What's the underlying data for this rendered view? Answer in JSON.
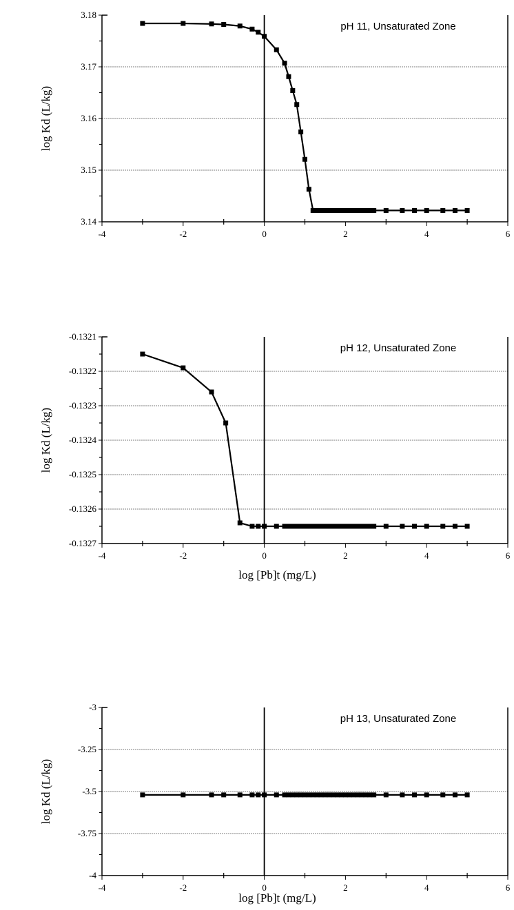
{
  "chart_data": [
    {
      "type": "line",
      "annotation": "pH 11, Unsaturated Zone",
      "ylabel": "log Kd (L/kg)",
      "xlabel": "",
      "xlim": [
        -4,
        6
      ],
      "ylim": [
        3.14,
        3.18
      ],
      "xticks": [
        "-4",
        "-2",
        "0",
        "2",
        "4",
        "6"
      ],
      "yticks": [
        "3.14",
        "3.15",
        "3.16",
        "3.17",
        "3.18"
      ],
      "ytick_values": [
        3.14,
        3.15,
        3.16,
        3.17,
        3.18
      ],
      "grid": "horizontal",
      "series": [
        {
          "x": [
            -3,
            -2,
            -1.3,
            -1,
            -0.6,
            -0.3,
            -0.15,
            0,
            0.3,
            0.5,
            0.6,
            0.7,
            0.8,
            0.9,
            1.0,
            1.1,
            1.2,
            1.3,
            1.4,
            1.5,
            1.6,
            1.7,
            1.8,
            1.9,
            2.0,
            2.1,
            2.2,
            2.3,
            2.4,
            2.5,
            2.6,
            2.7,
            3.0,
            3.4,
            3.7,
            4.0,
            4.4,
            4.7,
            5.0
          ],
          "values": [
            3.1784,
            3.1784,
            3.1783,
            3.1782,
            3.1779,
            3.1773,
            3.1767,
            3.1759,
            3.1733,
            3.1707,
            3.1681,
            3.1654,
            3.1627,
            3.1574,
            3.1521,
            3.1463,
            3.1422,
            3.1422,
            3.1422,
            3.1422,
            3.1422,
            3.1422,
            3.1422,
            3.1422,
            3.1422,
            3.1422,
            3.1422,
            3.1422,
            3.1422,
            3.1422,
            3.1422,
            3.1422,
            3.1422,
            3.1422,
            3.1422,
            3.1422,
            3.1422,
            3.1422,
            3.1422
          ]
        }
      ]
    },
    {
      "type": "line",
      "annotation": "pH 12, Unsaturated Zone",
      "ylabel": "log Kd (L/kg)",
      "xlabel": "log [Pb]t (mg/L)",
      "xlim": [
        -4,
        6
      ],
      "ylim": [
        -0.1327,
        -0.1321
      ],
      "xticks": [
        "-4",
        "-2",
        "0",
        "2",
        "4",
        "6"
      ],
      "yticks": [
        "-0.1327",
        "-0.1326",
        "-0.1325",
        "-0.1324",
        "-0.1323",
        "-0.1322",
        "-0.1321"
      ],
      "ytick_values": [
        -0.1327,
        -0.1326,
        -0.1325,
        -0.1324,
        -0.1323,
        -0.1322,
        -0.1321
      ],
      "grid": "horizontal",
      "series": [
        {
          "x": [
            -3,
            -2,
            -1.3,
            -0.95,
            -0.6,
            -0.3,
            -0.15,
            0,
            0.3,
            0.5,
            0.6,
            0.7,
            0.8,
            0.9,
            1.0,
            1.1,
            1.2,
            1.3,
            1.4,
            1.5,
            1.6,
            1.7,
            1.8,
            1.9,
            2.0,
            2.1,
            2.2,
            2.3,
            2.4,
            2.5,
            2.6,
            2.7,
            3.0,
            3.4,
            3.7,
            4.0,
            4.4,
            4.7,
            5.0
          ],
          "values": [
            -0.13215,
            -0.13219,
            -0.13226,
            -0.13235,
            -0.13264,
            -0.13265,
            -0.13265,
            -0.13265,
            -0.13265,
            -0.13265,
            -0.13265,
            -0.13265,
            -0.13265,
            -0.13265,
            -0.13265,
            -0.13265,
            -0.13265,
            -0.13265,
            -0.13265,
            -0.13265,
            -0.13265,
            -0.13265,
            -0.13265,
            -0.13265,
            -0.13265,
            -0.13265,
            -0.13265,
            -0.13265,
            -0.13265,
            -0.13265,
            -0.13265,
            -0.13265,
            -0.13265,
            -0.13265,
            -0.13265,
            -0.13265,
            -0.13265,
            -0.13265,
            -0.13265
          ]
        }
      ]
    },
    {
      "type": "line",
      "annotation": "pH 13, Unsaturated Zone",
      "ylabel": "log Kd (L/kg)",
      "xlabel": "log [Pb]t (mg/L)",
      "xlim": [
        -4,
        6
      ],
      "ylim": [
        -4,
        -3
      ],
      "xticks": [
        "-4",
        "-2",
        "0",
        "2",
        "4",
        "6"
      ],
      "yticks": [
        "-4",
        "-3.75",
        "-3.5",
        "-3.25",
        "-3"
      ],
      "ytick_values": [
        -4,
        -3.75,
        -3.5,
        -3.25,
        -3
      ],
      "grid": "horizontal",
      "series": [
        {
          "x": [
            -3,
            -2,
            -1.3,
            -1,
            -0.6,
            -0.3,
            -0.15,
            0,
            0.3,
            0.5,
            0.6,
            0.7,
            0.8,
            0.9,
            1.0,
            1.1,
            1.2,
            1.3,
            1.4,
            1.5,
            1.6,
            1.7,
            1.8,
            1.9,
            2.0,
            2.1,
            2.2,
            2.3,
            2.4,
            2.5,
            2.6,
            2.7,
            3.0,
            3.4,
            3.7,
            4.0,
            4.4,
            4.7,
            5.0
          ],
          "values": [
            -3.52,
            -3.52,
            -3.52,
            -3.52,
            -3.52,
            -3.52,
            -3.52,
            -3.52,
            -3.52,
            -3.52,
            -3.52,
            -3.52,
            -3.52,
            -3.52,
            -3.52,
            -3.52,
            -3.52,
            -3.52,
            -3.52,
            -3.52,
            -3.52,
            -3.52,
            -3.52,
            -3.52,
            -3.52,
            -3.52,
            -3.52,
            -3.52,
            -3.52,
            -3.52,
            -3.52,
            -3.52,
            -3.52,
            -3.52,
            -3.52,
            -3.52,
            -3.52,
            -3.52,
            -3.52
          ]
        }
      ]
    }
  ]
}
